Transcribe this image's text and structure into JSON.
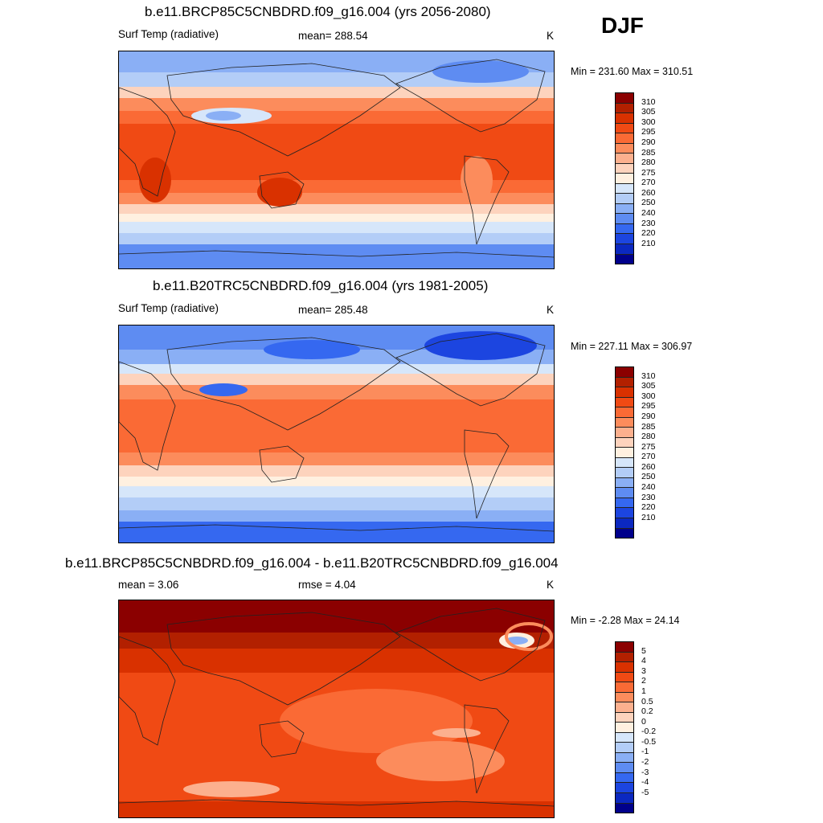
{
  "season": "DJF",
  "panels": [
    {
      "title": "b.e11.BRCP85C5CNBDRD.f09_g16.004 (yrs 2056-2080)",
      "left_label": "Surf Temp (radiative)",
      "mid_label": "mean= 288.54",
      "units": "K",
      "minmax": "Min = 231.60 Max = 310.51",
      "colorbar_labels": [
        "310",
        "305",
        "300",
        "295",
        "290",
        "285",
        "280",
        "275",
        "270",
        "260",
        "250",
        "240",
        "230",
        "220",
        "210"
      ]
    },
    {
      "title": "b.e11.B20TRC5CNBDRD.f09_g16.004 (yrs 1981-2005)",
      "left_label": "Surf Temp (radiative)",
      "mid_label": "mean= 285.48",
      "units": "K",
      "minmax": "Min = 227.11 Max = 306.97",
      "colorbar_labels": [
        "310",
        "305",
        "300",
        "295",
        "290",
        "285",
        "280",
        "275",
        "270",
        "260",
        "250",
        "240",
        "230",
        "220",
        "210"
      ]
    },
    {
      "title": "b.e11.BRCP85C5CNBDRD.f09_g16.004 - b.e11.B20TRC5CNBDRD.f09_g16.004",
      "left_label": "mean =   3.06",
      "mid_label": "rmse =   4.04",
      "units": "K",
      "minmax": "Min =  -2.28 Max =  24.14",
      "colorbar_labels": [
        "5",
        "4",
        "3",
        "2",
        "1",
        "0.5",
        "0.2",
        "0",
        "-0.2",
        "-0.5",
        "-1",
        "-2",
        "-3",
        "-4",
        "-5"
      ]
    }
  ],
  "colors": {
    "abs_scale": [
      "#8b0000",
      "#b22000",
      "#d93100",
      "#f04a14",
      "#fa6a35",
      "#fc8c5c",
      "#fcb08e",
      "#fdd3bd",
      "#fff0e0",
      "#d6e6fa",
      "#b3cdf7",
      "#8aaff5",
      "#5e8cf2",
      "#3568f0",
      "#1c45e0",
      "#0b28c0",
      "#00008b"
    ],
    "diff_scale": [
      "#8b0000",
      "#b22000",
      "#d93100",
      "#f04a14",
      "#fa6a35",
      "#fc8c5c",
      "#fcb08e",
      "#fdd3bd",
      "#fff0e0",
      "#d6e6fa",
      "#b3cdf7",
      "#8aaff5",
      "#5e8cf2",
      "#3568f0",
      "#1c45e0",
      "#0b28c0",
      "#00008b"
    ]
  }
}
